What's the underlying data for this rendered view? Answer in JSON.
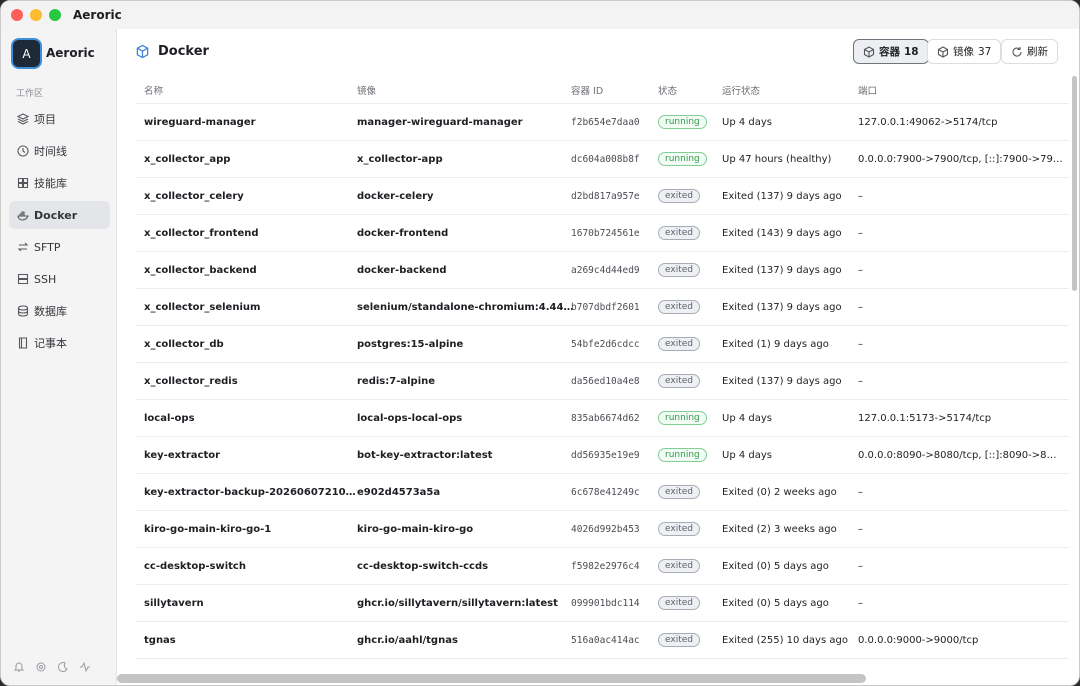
{
  "window": {
    "title": "Aeroric"
  },
  "sidebar": {
    "avatar": "A",
    "app_name": "Aeroric",
    "section": "工作区",
    "items": [
      "项目",
      "时间线",
      "技能库",
      "Docker",
      "SFTP",
      "SSH",
      "数据库",
      "记事本"
    ],
    "active": 3
  },
  "header": {
    "title": "Docker",
    "tabs": [
      {
        "label": "容器",
        "count": 18
      },
      {
        "label": "镜像",
        "count": 37
      }
    ],
    "active_tab": 0,
    "refresh": "刷新"
  },
  "table": {
    "columns": [
      "名称",
      "镜像",
      "容器 ID",
      "状态",
      "运行状态",
      "端口"
    ],
    "status_styles": {
      "running": {
        "color": "#2f9a4e",
        "border": "#7fcf95",
        "background": "#f3fbf5"
      },
      "exited": {
        "color": "#5d6470",
        "border": "#a7adb6",
        "background": "#eef0f3"
      }
    },
    "rows": [
      [
        "wireguard-manager",
        "manager-wireguard-manager",
        "f2b654e7daa0",
        "running",
        "Up 4 days",
        "127.0.0.1:49062->5174/tcp"
      ],
      [
        "x_collector_app",
        "x_collector-app",
        "dc604a008b8f",
        "running",
        "Up 47 hours (healthy)",
        "0.0.0.0:7900->7900/tcp, [::]:7900->79…"
      ],
      [
        "x_collector_celery",
        "docker-celery",
        "d2bd817a957e",
        "exited",
        "Exited (137) 9 days ago",
        "–"
      ],
      [
        "x_collector_frontend",
        "docker-frontend",
        "1670b724561e",
        "exited",
        "Exited (143) 9 days ago",
        "–"
      ],
      [
        "x_collector_backend",
        "docker-backend",
        "a269c4d44ed9",
        "exited",
        "Exited (137) 9 days ago",
        "–"
      ],
      [
        "x_collector_selenium",
        "selenium/standalone-chromium:4.44…",
        "b707dbdf2601",
        "exited",
        "Exited (137) 9 days ago",
        "–"
      ],
      [
        "x_collector_db",
        "postgres:15-alpine",
        "54bfe2d6cdcc",
        "exited",
        "Exited (1) 9 days ago",
        "–"
      ],
      [
        "x_collector_redis",
        "redis:7-alpine",
        "da56ed10a4e8",
        "exited",
        "Exited (137) 9 days ago",
        "–"
      ],
      [
        "local-ops",
        "local-ops-local-ops",
        "835ab6674d62",
        "running",
        "Up 4 days",
        "127.0.0.1:5173->5174/tcp"
      ],
      [
        "key-extractor",
        "bot-key-extractor:latest",
        "dd56935e19e9",
        "running",
        "Up 4 days",
        "0.0.0.0:8090->8080/tcp, [::]:8090->8…"
      ],
      [
        "key-extractor-backup-20260607210…",
        "e902d4573a5a",
        "6c678e41249c",
        "exited",
        "Exited (0) 2 weeks ago",
        "–"
      ],
      [
        "kiro-go-main-kiro-go-1",
        "kiro-go-main-kiro-go",
        "4026d992b453",
        "exited",
        "Exited (2) 3 weeks ago",
        "–"
      ],
      [
        "cc-desktop-switch",
        "cc-desktop-switch-ccds",
        "f5982e2976c4",
        "exited",
        "Exited (0) 5 days ago",
        "–"
      ],
      [
        "sillytavern",
        "ghcr.io/sillytavern/sillytavern:latest",
        "099901bdc114",
        "exited",
        "Exited (0) 5 days ago",
        "–"
      ],
      [
        "tgnas",
        "ghcr.io/aahl/tgnas",
        "516a0ac414ac",
        "exited",
        "Exited (255) 10 days ago",
        "0.0.0.0:9000->9000/tcp"
      ]
    ]
  }
}
